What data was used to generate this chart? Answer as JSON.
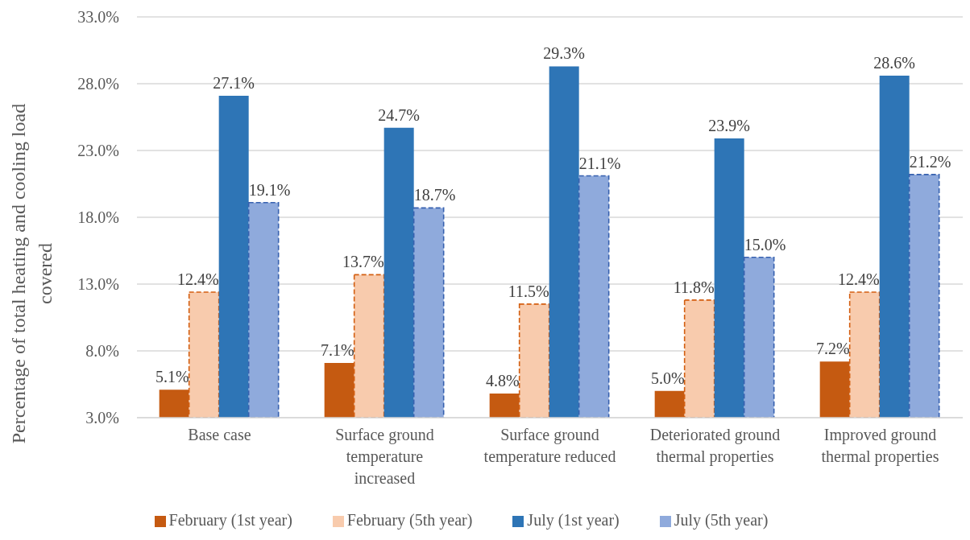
{
  "chart_data": {
    "type": "bar",
    "categories": [
      "Base case",
      "Surface ground temperature increased",
      "Surface ground temperature reduced",
      "Deteriorated ground thermal properties",
      "Improved ground thermal properties"
    ],
    "series": [
      {
        "name": "February (1st year)",
        "color": "#c55a11",
        "values": [
          5.1,
          7.1,
          4.8,
          5.0,
          7.2
        ],
        "value_labels": [
          "5.1%",
          "7.1%",
          "4.8%",
          "5.0%",
          "7.2%"
        ]
      },
      {
        "name": "February (5th year)",
        "color": "#f8cbad",
        "line_style": "dashed",
        "values": [
          12.4,
          13.7,
          11.5,
          11.8,
          12.4
        ],
        "value_labels": [
          "12.4%",
          "13.7%",
          "11.5%",
          "11.8%",
          "12.4%"
        ]
      },
      {
        "name": "July (1st year)",
        "color": "#2e75b6",
        "values": [
          27.1,
          24.7,
          29.3,
          23.9,
          28.6
        ],
        "value_labels": [
          "27.1%",
          "24.7%",
          "29.3%",
          "23.9%",
          "28.6%"
        ]
      },
      {
        "name": "July (5th year)",
        "color": "#8faadc",
        "line_style": "dashed",
        "values": [
          19.1,
          18.7,
          21.1,
          15.0,
          21.2
        ],
        "value_labels": [
          "19.1%",
          "18.7%",
          "21.1%",
          "15.0%",
          "21.2%"
        ]
      }
    ],
    "ylabel": "Percentage of total heating and cooling load covered",
    "ylim": [
      3,
      33
    ],
    "yticks": [
      {
        "value": 3,
        "label": "3.0%"
      },
      {
        "value": 8,
        "label": "8.0%"
      },
      {
        "value": 13,
        "label": "13.0%"
      },
      {
        "value": 18,
        "label": "18.0%"
      },
      {
        "value": 23,
        "label": "23.0%"
      },
      {
        "value": 28,
        "label": "28.0%"
      },
      {
        "value": 33,
        "label": "33.0%"
      }
    ],
    "grid": "y",
    "legend": "bottom"
  }
}
